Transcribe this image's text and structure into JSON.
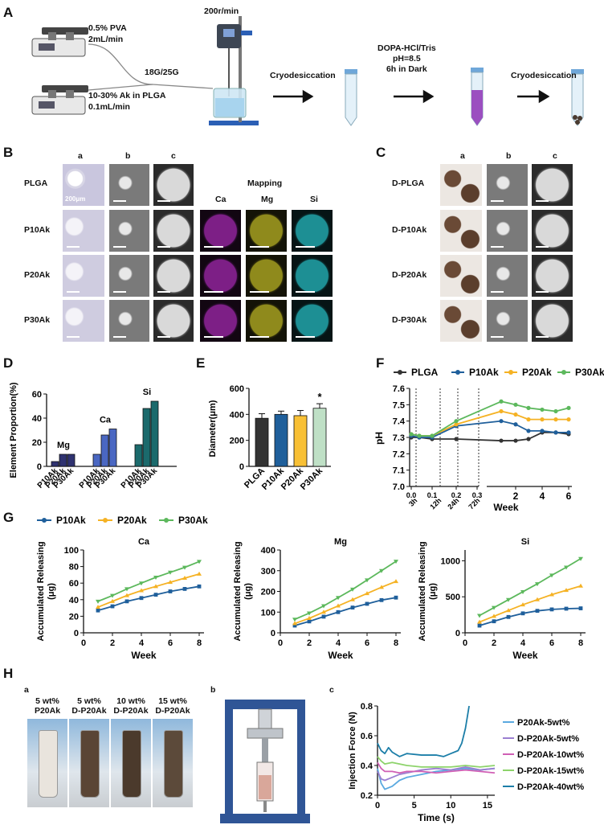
{
  "panelA": {
    "label": "A",
    "pump1_text": [
      "0.5% PVA",
      "2mL/min"
    ],
    "pump2_text": [
      "10-30% Ak in PLGA",
      "0.1mL/min"
    ],
    "needle": "18G/25G",
    "stirrer": "200r/min",
    "step1": "Cryodesiccation",
    "step2": [
      "DOPA-HCl/Tris",
      "pH=8.5",
      "6h in Dark"
    ],
    "step3": "Cryodesiccation"
  },
  "panelB": {
    "label": "B",
    "cols": [
      "a",
      "b",
      "c"
    ],
    "mapping_title": "Mapping",
    "map_cols": [
      "Ca",
      "Mg",
      "Si"
    ],
    "rows": [
      "PLGA",
      "P10Ak",
      "P20Ak",
      "P30Ak"
    ],
    "scale": "200μm"
  },
  "panelC": {
    "label": "C",
    "cols": [
      "a",
      "b",
      "c"
    ],
    "rows": [
      "D-PLGA",
      "D-P10Ak",
      "D-P20Ak",
      "D-P30Ak"
    ]
  },
  "panelD": {
    "label": "D",
    "chart_data": {
      "type": "bar",
      "ylabel": "Element Proportion(%)",
      "ylim": [
        0,
        60
      ],
      "yticks": [
        0,
        20,
        40,
        60
      ],
      "groups": [
        "Mg",
        "Ca",
        "Si"
      ],
      "categories": [
        "P10Ak",
        "P20Ak",
        "P30Ak"
      ],
      "values": {
        "Mg": [
          4,
          10,
          10
        ],
        "Ca": [
          10,
          26,
          31
        ],
        "Si": [
          18,
          48,
          54
        ]
      },
      "colors": {
        "Mg": "#2f3270",
        "Ca": "#4a67c2",
        "Si": "#1b6a6c"
      }
    }
  },
  "panelE": {
    "label": "E",
    "chart_data": {
      "type": "bar",
      "ylabel": "Diameter(μm)",
      "ylim": [
        0,
        600
      ],
      "yticks": [
        0,
        200,
        400,
        600
      ],
      "categories": [
        "PLGA",
        "P10Ak",
        "P20Ak",
        "P30Ak"
      ],
      "values": [
        370,
        400,
        390,
        447
      ],
      "errors": [
        35,
        25,
        40,
        35
      ],
      "colors": [
        "#333333",
        "#1f5f9b",
        "#f8c035",
        "#bfe0c6"
      ],
      "annotation": "*"
    }
  },
  "panelF": {
    "label": "F",
    "chart_data": {
      "type": "line",
      "ylabel": "pH",
      "xlabel": "Week",
      "ylim": [
        7.0,
        7.6
      ],
      "yticks": [
        "7.0",
        "7.1",
        "7.2",
        "7.3",
        "7.4",
        "7.5",
        "7.6"
      ],
      "x_early_ticks": [
        "0.0",
        "0.1",
        "0.2",
        "0.3"
      ],
      "x_early_labels": [
        "3h",
        "12h",
        "24h",
        "72h"
      ],
      "x_late_ticks": [
        "2",
        "4",
        "6"
      ],
      "legend": [
        "PLGA",
        "P10Ak",
        "P20Ak",
        "P30Ak"
      ],
      "colors": [
        "#333333",
        "#1f5f9b",
        "#f5b224",
        "#5cb85c"
      ],
      "series": [
        {
          "name": "PLGA",
          "values": [
            7.3,
            7.3,
            7.29,
            7.29,
            7.28,
            7.28,
            7.29,
            7.33,
            7.33,
            7.32
          ]
        },
        {
          "name": "P10Ak",
          "values": [
            7.31,
            7.3,
            7.3,
            7.37,
            7.4,
            7.38,
            7.34,
            7.34,
            7.33,
            7.33
          ]
        },
        {
          "name": "P20Ak",
          "values": [
            7.32,
            7.31,
            7.31,
            7.38,
            7.46,
            7.44,
            7.41,
            7.41,
            7.41,
            7.41
          ]
        },
        {
          "name": "P30Ak",
          "values": [
            7.32,
            7.31,
            7.31,
            7.4,
            7.52,
            7.5,
            7.48,
            7.47,
            7.46,
            7.48
          ]
        }
      ]
    }
  },
  "panelG": {
    "label": "G",
    "legend": [
      "P10Ak",
      "P20Ak",
      "P30Ak"
    ],
    "colors": [
      "#1f5f9b",
      "#f5b224",
      "#5cb85c"
    ],
    "chart_data": [
      {
        "type": "line",
        "title": "Ca",
        "xlabel": "Week",
        "ylabel": "Accumulated Releasing (μg)",
        "x": [
          1,
          2,
          3,
          4,
          5,
          6,
          7,
          8
        ],
        "ylim": [
          0,
          100
        ],
        "yticks": [
          "0",
          "20",
          "40",
          "60",
          "80",
          "100"
        ],
        "series": [
          {
            "name": "P10Ak",
            "values": [
              27,
              32,
              38,
              42,
              46,
              50,
              53,
              56
            ]
          },
          {
            "name": "P20Ak",
            "values": [
              31,
              38,
              45,
              51,
              56,
              61,
              66,
              71
            ]
          },
          {
            "name": "P30Ak",
            "values": [
              38,
              45,
              53,
              60,
              67,
              73,
              79,
              86
            ]
          }
        ]
      },
      {
        "type": "line",
        "title": "Mg",
        "xlabel": "Week",
        "ylabel": "Accumulated Releasing (μg)",
        "x": [
          1,
          2,
          3,
          4,
          5,
          6,
          7,
          8
        ],
        "ylim": [
          0,
          400
        ],
        "yticks": [
          "0",
          "100",
          "200",
          "300",
          "400"
        ],
        "series": [
          {
            "name": "P10Ak",
            "values": [
              35,
              55,
              78,
              100,
              122,
              140,
              158,
              170
            ]
          },
          {
            "name": "P20Ak",
            "values": [
              45,
              70,
              100,
              130,
              160,
              190,
              220,
              248
            ]
          },
          {
            "name": "P30Ak",
            "values": [
              65,
              95,
              130,
              170,
              210,
              255,
              300,
              345
            ]
          }
        ]
      },
      {
        "type": "line",
        "title": "Si",
        "xlabel": "Week",
        "ylabel": "Accumulated Releasing (μg)",
        "x": [
          1,
          2,
          3,
          4,
          5,
          6,
          7,
          8
        ],
        "ylim": [
          0,
          1150
        ],
        "yticks": [
          "0",
          "500",
          "1000"
        ],
        "series": [
          {
            "name": "P10Ak",
            "values": [
              100,
              160,
              220,
              270,
              305,
              325,
              335,
              340
            ]
          },
          {
            "name": "P20Ak",
            "values": [
              150,
              230,
              310,
              390,
              460,
              530,
              590,
              650
            ]
          },
          {
            "name": "P30Ak",
            "values": [
              240,
              350,
              460,
              570,
              680,
              800,
              910,
              1030
            ]
          }
        ]
      }
    ]
  },
  "panelH": {
    "label": "H",
    "sub_a": "a",
    "sub_b": "b",
    "sub_c": "c",
    "vials": [
      [
        "5 wt%",
        "P20Ak"
      ],
      [
        "5 wt%",
        "D-P20Ak"
      ],
      [
        "10 wt%",
        "D-P20Ak"
      ],
      [
        "15 wt%",
        "D-P20Ak"
      ]
    ],
    "vial_colors": [
      "#e9e4dd",
      "#5a4535",
      "#4b3a2c",
      "#5c4a3a"
    ],
    "chart_data": {
      "type": "line",
      "xlabel": "Time (s)",
      "ylabel": "Injection Force (N)",
      "ylim": [
        0.2,
        0.8
      ],
      "yticks": [
        "0.2",
        "0.4",
        "0.6",
        "0.8"
      ],
      "xlim": [
        0,
        16
      ],
      "xticks": [
        "0",
        "5",
        "10",
        "15"
      ],
      "legend": [
        "P20Ak-5wt%",
        "D-P20Ak-5wt%",
        "D-P20Ak-10wt%",
        "D-P20Ak-15wt%",
        "D-P20Ak-40wt%"
      ],
      "colors": [
        "#5aa9e0",
        "#9b7fd1",
        "#d05fb5",
        "#8dd36b",
        "#1c7ea8"
      ],
      "series": [
        {
          "name": "P20Ak-5wt%",
          "x": [
            0,
            0.5,
            1,
            2,
            3,
            4,
            6,
            8,
            10,
            12,
            14,
            16
          ],
          "values": [
            0.38,
            0.28,
            0.24,
            0.26,
            0.3,
            0.32,
            0.34,
            0.36,
            0.37,
            0.38,
            0.37,
            0.38
          ]
        },
        {
          "name": "D-P20Ak-5wt%",
          "x": [
            0,
            0.5,
            1,
            2,
            3,
            4,
            6,
            8,
            10,
            12,
            14,
            16
          ],
          "values": [
            0.36,
            0.31,
            0.3,
            0.32,
            0.34,
            0.35,
            0.37,
            0.38,
            0.37,
            0.39,
            0.37,
            0.38
          ]
        },
        {
          "name": "D-P20Ak-10wt%",
          "x": [
            0,
            0.5,
            1,
            2,
            3,
            4,
            6,
            8,
            10,
            12,
            14,
            16
          ],
          "values": [
            0.42,
            0.38,
            0.36,
            0.36,
            0.35,
            0.36,
            0.36,
            0.35,
            0.36,
            0.37,
            0.36,
            0.35
          ]
        },
        {
          "name": "D-P20Ak-15wt%",
          "x": [
            0,
            0.5,
            1,
            2,
            3,
            4,
            6,
            8,
            10,
            12,
            14,
            16
          ],
          "values": [
            0.46,
            0.43,
            0.41,
            0.42,
            0.41,
            0.4,
            0.39,
            0.39,
            0.39,
            0.4,
            0.39,
            0.4
          ]
        },
        {
          "name": "D-P20Ak-40wt%",
          "x": [
            0,
            0.5,
            1,
            1.5,
            2,
            3,
            4,
            6,
            8,
            9,
            10,
            11,
            11.5,
            12,
            12.5
          ],
          "values": [
            0.55,
            0.5,
            0.48,
            0.52,
            0.49,
            0.46,
            0.48,
            0.47,
            0.47,
            0.46,
            0.48,
            0.5,
            0.55,
            0.65,
            0.8
          ]
        }
      ]
    }
  }
}
